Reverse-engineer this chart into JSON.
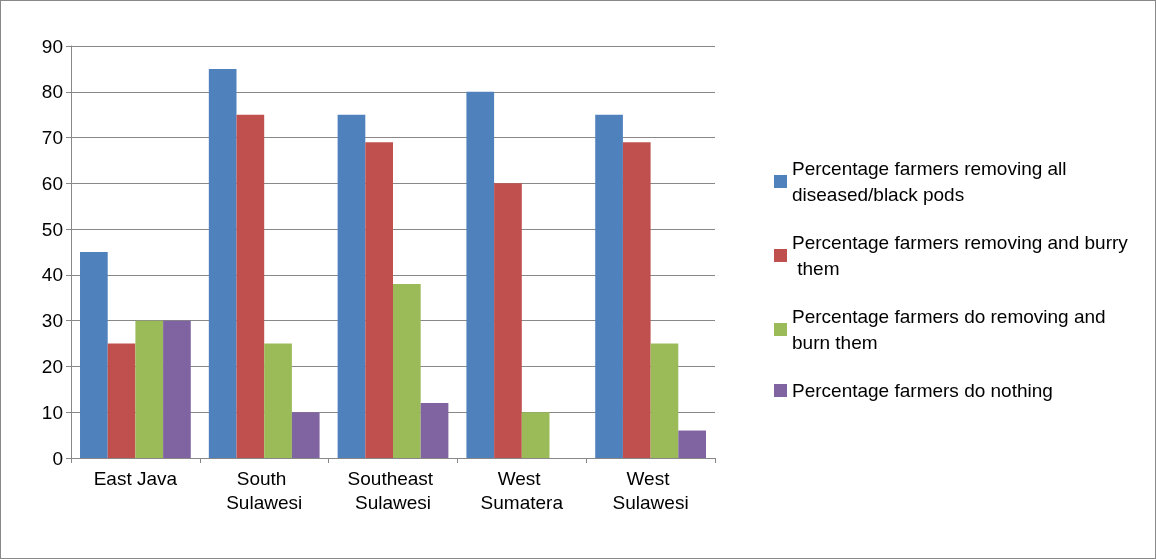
{
  "chart_data": {
    "type": "bar",
    "categories": [
      "East Java",
      "South Sulawesi",
      "Southeast Sulawesi",
      "West Sumatera",
      "West Sulawesi"
    ],
    "series": [
      {
        "name": "Percentage farmers removing all diseased/black pods",
        "color": "#4f81bd",
        "values": [
          45,
          85,
          75,
          80,
          75
        ]
      },
      {
        "name": "Percentage farmers removing and burry them",
        "color": "#c0504d",
        "values": [
          25,
          75,
          69,
          60,
          69
        ]
      },
      {
        "name": "Percentage farmers do removing and burn them",
        "color": "#9bbb59",
        "values": [
          30,
          25,
          38,
          10,
          25
        ]
      },
      {
        "name": "Percentage farmers do nothing",
        "color": "#8064a2",
        "values": [
          30,
          10,
          12,
          0,
          6
        ]
      }
    ],
    "ylim": [
      0,
      90
    ],
    "yticks": [
      0,
      10,
      20,
      30,
      40,
      50,
      60,
      70,
      80,
      90
    ],
    "grid": "y",
    "legend": "right"
  }
}
